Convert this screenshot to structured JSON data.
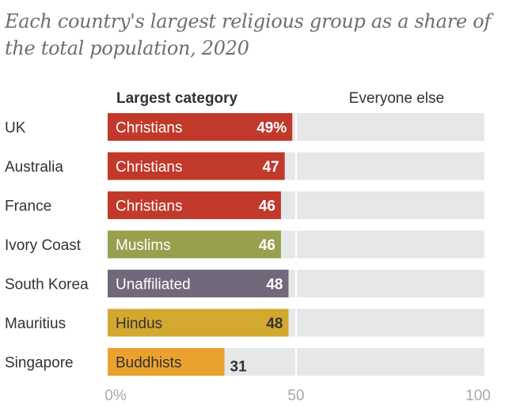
{
  "title": "Each country's largest religious group as a share of the total population, 2020",
  "chart_data": {
    "type": "bar",
    "orientation": "horizontal",
    "stacked": true,
    "title": "Each country's largest religious group as a share of the total population, 2020",
    "column_headers": {
      "left": "Largest category",
      "right": "Everyone else"
    },
    "categories": [
      "UK",
      "Australia",
      "France",
      "Ivory Coast",
      "South Korea",
      "Mauritius",
      "Singapore"
    ],
    "rows": [
      {
        "country": "UK",
        "group": "Christians",
        "value": 49,
        "label": "49%",
        "color": "#c0392b",
        "label_color": "#ffffff"
      },
      {
        "country": "Australia",
        "group": "Christians",
        "value": 47,
        "label": "47",
        "color": "#c0392b",
        "label_color": "#ffffff"
      },
      {
        "country": "France",
        "group": "Christians",
        "value": 46,
        "label": "46",
        "color": "#c0392b",
        "label_color": "#ffffff"
      },
      {
        "country": "Ivory Coast",
        "group": "Muslims",
        "value": 46,
        "label": "46",
        "color": "#98a04e",
        "label_color": "#ffffff"
      },
      {
        "country": "South Korea",
        "group": "Unaffiliated",
        "value": 48,
        "label": "48",
        "color": "#72687c",
        "label_color": "#ffffff"
      },
      {
        "country": "Mauritius",
        "group": "Hindus",
        "value": 48,
        "label": "48",
        "color": "#d3a82f",
        "label_color": "#333333"
      },
      {
        "country": "Singapore",
        "group": "Buddhists",
        "value": 31,
        "label": "31",
        "color": "#eaa22f",
        "label_color": "#333333"
      }
    ],
    "remainder_color": "#e6e7e8",
    "xlim": [
      0,
      100
    ],
    "x_ticks": [
      0,
      50,
      100
    ],
    "x_tick_labels": [
      "0%",
      "50",
      "100"
    ],
    "grid": false,
    "legend": "none"
  }
}
